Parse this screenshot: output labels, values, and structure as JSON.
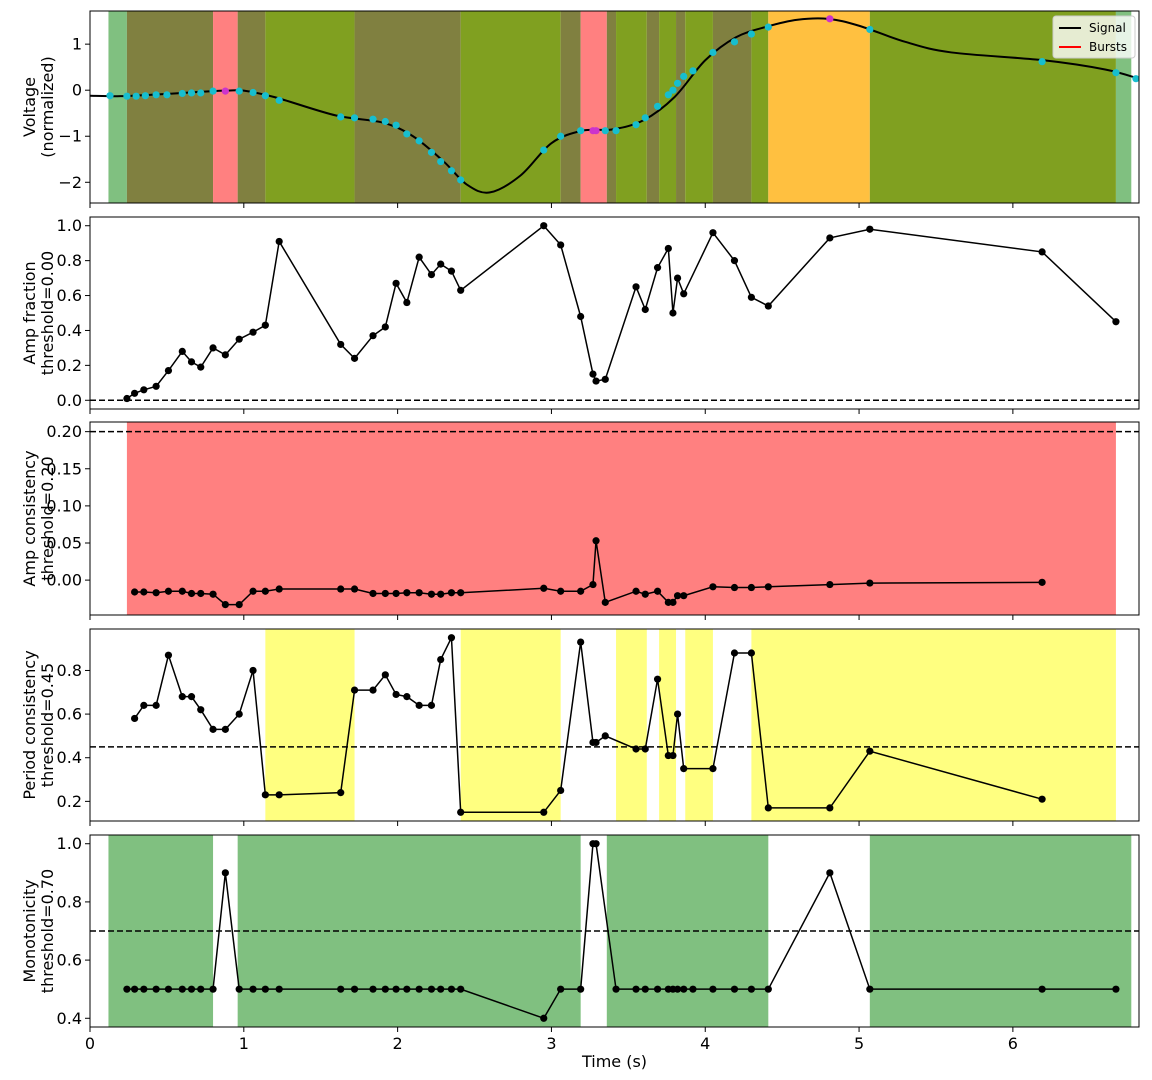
{
  "figure": {
    "xlabel": "Time (s)",
    "xlim": [
      0,
      6.82
    ],
    "xticks": [
      0,
      1,
      2,
      3,
      4,
      5,
      6
    ]
  },
  "chart_data": [
    {
      "type": "line",
      "panel": "signal",
      "ylabel": [
        "Voltage",
        "(normalized)"
      ],
      "ylim": [
        -2.45,
        1.72
      ],
      "yticks": [
        -2,
        -1,
        0,
        1
      ],
      "legend": {
        "placement": "top-right",
        "entries": [
          {
            "label": "Signal",
            "color": "#000000"
          },
          {
            "label": "Bursts",
            "color": "#ff0000"
          }
        ]
      },
      "signal": {
        "x": [
          0.0,
          0.2,
          0.4,
          0.6,
          0.8,
          0.9,
          1.0,
          1.2,
          1.6,
          1.9,
          2.1,
          2.3,
          2.45,
          2.6,
          2.8,
          3.0,
          3.2,
          3.4,
          3.6,
          3.8,
          4.0,
          4.2,
          4.4,
          4.6,
          4.8,
          5.0,
          5.3,
          5.6,
          6.2,
          6.6,
          6.82
        ],
        "y": [
          -0.12,
          -0.13,
          -0.1,
          -0.06,
          -0.02,
          -0.01,
          -0.01,
          -0.15,
          -0.55,
          -0.7,
          -1.0,
          -1.55,
          -2.05,
          -2.22,
          -1.85,
          -1.15,
          -0.88,
          -0.85,
          -0.65,
          -0.15,
          0.65,
          1.15,
          1.38,
          1.53,
          1.55,
          1.4,
          1.05,
          0.82,
          0.65,
          0.45,
          0.25
        ]
      },
      "extrema_cyan": {
        "x": [
          0.13,
          0.24,
          0.3,
          0.36,
          0.43,
          0.5,
          0.6,
          0.66,
          0.72,
          0.8,
          0.97,
          1.06,
          1.14,
          1.23,
          1.63,
          1.72,
          1.84,
          1.92,
          1.99,
          2.06,
          2.14,
          2.22,
          2.28,
          2.35,
          2.41,
          2.95,
          3.06,
          3.19,
          3.35,
          3.42,
          3.55,
          3.61,
          3.69,
          3.76,
          3.79,
          3.82,
          3.86,
          3.92,
          4.05,
          4.19,
          4.3,
          4.41,
          5.07,
          6.19,
          6.67,
          6.8
        ],
        "y": [
          -0.12,
          -0.13,
          -0.13,
          -0.12,
          -0.1,
          -0.1,
          -0.07,
          -0.06,
          -0.06,
          -0.02,
          -0.02,
          -0.05,
          -0.12,
          -0.22,
          -0.58,
          -0.6,
          -0.63,
          -0.68,
          -0.76,
          -0.95,
          -1.1,
          -1.35,
          -1.55,
          -1.75,
          -1.95,
          -1.3,
          -1.0,
          -0.88,
          -0.88,
          -0.88,
          -0.75,
          -0.6,
          -0.35,
          -0.1,
          0.0,
          0.15,
          0.3,
          0.42,
          0.82,
          1.05,
          1.22,
          1.37,
          1.32,
          0.62,
          0.38,
          0.25
        ]
      },
      "extrema_magenta": {
        "x": [
          0.88,
          3.27,
          3.29,
          4.81
        ],
        "y": [
          -0.02,
          -0.88,
          -0.88,
          1.55
        ]
      },
      "regions": [
        {
          "x0": 0.12,
          "x1": 0.24,
          "color": "#80c080"
        },
        {
          "x0": 0.24,
          "x1": 0.8,
          "color": "#808040"
        },
        {
          "x0": 0.8,
          "x1": 0.96,
          "color": "#ff8080"
        },
        {
          "x0": 0.96,
          "x1": 1.14,
          "color": "#808040"
        },
        {
          "x0": 1.14,
          "x1": 1.72,
          "color": "#80a020"
        },
        {
          "x0": 1.72,
          "x1": 2.41,
          "color": "#808040"
        },
        {
          "x0": 2.41,
          "x1": 3.06,
          "color": "#80a020"
        },
        {
          "x0": 3.06,
          "x1": 3.19,
          "color": "#808040"
        },
        {
          "x0": 3.19,
          "x1": 3.36,
          "color": "#ff8080"
        },
        {
          "x0": 3.36,
          "x1": 3.42,
          "color": "#808040"
        },
        {
          "x0": 3.42,
          "x1": 3.62,
          "color": "#80a020"
        },
        {
          "x0": 3.62,
          "x1": 3.7,
          "color": "#808040"
        },
        {
          "x0": 3.7,
          "x1": 3.81,
          "color": "#80a020"
        },
        {
          "x0": 3.81,
          "x1": 3.87,
          "color": "#808040"
        },
        {
          "x0": 3.87,
          "x1": 4.05,
          "color": "#80a020"
        },
        {
          "x0": 4.05,
          "x1": 4.3,
          "color": "#808040"
        },
        {
          "x0": 4.3,
          "x1": 4.41,
          "color": "#80a020"
        },
        {
          "x0": 4.41,
          "x1": 5.07,
          "color": "#ffc040"
        },
        {
          "x0": 5.07,
          "x1": 6.67,
          "color": "#80a020"
        },
        {
          "x0": 6.67,
          "x1": 6.77,
          "color": "#80c080"
        }
      ]
    },
    {
      "type": "line",
      "panel": "amp-fraction",
      "ylabel": [
        "Amp fraction",
        "threshold=0.00"
      ],
      "ylim": [
        -0.05,
        1.05
      ],
      "yticks": [
        0.0,
        0.2,
        0.4,
        0.6,
        0.8,
        1.0
      ],
      "yticklabels": [
        "0.0",
        "0.2",
        "0.4",
        "0.6",
        "0.8",
        "1.0"
      ],
      "threshold": 0.0,
      "regions": [],
      "series": {
        "x": [
          0.24,
          0.29,
          0.35,
          0.43,
          0.51,
          0.6,
          0.66,
          0.72,
          0.8,
          0.88,
          0.97,
          1.06,
          1.14,
          1.23,
          1.63,
          1.72,
          1.84,
          1.92,
          1.99,
          2.06,
          2.14,
          2.22,
          2.28,
          2.35,
          2.41,
          2.95,
          3.06,
          3.19,
          3.27,
          3.29,
          3.35,
          3.55,
          3.61,
          3.69,
          3.76,
          3.79,
          3.82,
          3.86,
          4.05,
          4.19,
          4.3,
          4.41,
          4.81,
          5.07,
          6.19,
          6.67
        ],
        "y": [
          0.01,
          0.04,
          0.06,
          0.08,
          0.17,
          0.28,
          0.22,
          0.19,
          0.3,
          0.26,
          0.35,
          0.39,
          0.43,
          0.91,
          0.32,
          0.24,
          0.37,
          0.42,
          0.67,
          0.56,
          0.82,
          0.72,
          0.78,
          0.74,
          0.63,
          1.0,
          0.89,
          0.48,
          0.15,
          0.11,
          0.12,
          0.65,
          0.52,
          0.76,
          0.87,
          0.5,
          0.7,
          0.61,
          0.96,
          0.8,
          0.59,
          0.54,
          0.93,
          0.98,
          0.85,
          0.45
        ]
      }
    },
    {
      "type": "line",
      "panel": "amp-consistency",
      "ylabel": [
        "Amp consistency",
        "threshold=0.20"
      ],
      "ylim": [
        -0.047,
        0.213
      ],
      "yticks": [
        0.0,
        0.05,
        0.1,
        0.15,
        0.2
      ],
      "yticklabels": [
        "0.00",
        "0.05",
        "0.10",
        "0.15",
        "0.20"
      ],
      "threshold": 0.2,
      "regions": [
        {
          "x0": 0.24,
          "x1": 6.67,
          "color": "#ff8080"
        }
      ],
      "series": {
        "x": [
          0.29,
          0.35,
          0.43,
          0.51,
          0.6,
          0.66,
          0.72,
          0.8,
          0.88,
          0.97,
          1.06,
          1.14,
          1.23,
          1.63,
          1.72,
          1.84,
          1.92,
          1.99,
          2.06,
          2.14,
          2.22,
          2.28,
          2.35,
          2.41,
          2.95,
          3.06,
          3.19,
          3.27,
          3.29,
          3.35,
          3.55,
          3.61,
          3.69,
          3.76,
          3.79,
          3.82,
          3.86,
          4.05,
          4.19,
          4.3,
          4.41,
          4.81,
          5.07,
          6.19
        ],
        "y": [
          -0.016,
          -0.016,
          -0.017,
          -0.015,
          -0.015,
          -0.018,
          -0.018,
          -0.019,
          -0.033,
          -0.033,
          -0.015,
          -0.015,
          -0.012,
          -0.012,
          -0.012,
          -0.018,
          -0.018,
          -0.018,
          -0.017,
          -0.017,
          -0.019,
          -0.019,
          -0.017,
          -0.017,
          -0.011,
          -0.015,
          -0.015,
          -0.006,
          0.053,
          -0.03,
          -0.015,
          -0.019,
          -0.015,
          -0.03,
          -0.03,
          -0.021,
          -0.021,
          -0.009,
          -0.01,
          -0.01,
          -0.009,
          -0.006,
          -0.004,
          -0.003
        ]
      }
    },
    {
      "type": "line",
      "panel": "period-consistency",
      "ylabel": [
        "Period consistency",
        "threshold=0.45"
      ],
      "ylim": [
        0.11,
        0.99
      ],
      "yticks": [
        0.2,
        0.4,
        0.6,
        0.8
      ],
      "yticklabels": [
        "0.2",
        "0.4",
        "0.6",
        "0.8"
      ],
      "threshold": 0.45,
      "regions": [
        {
          "x0": 1.14,
          "x1": 1.72,
          "color": "#ffff80"
        },
        {
          "x0": 2.41,
          "x1": 3.06,
          "color": "#ffff80"
        },
        {
          "x0": 3.42,
          "x1": 3.62,
          "color": "#ffff80"
        },
        {
          "x0": 3.7,
          "x1": 3.81,
          "color": "#ffff80"
        },
        {
          "x0": 3.87,
          "x1": 4.05,
          "color": "#ffff80"
        },
        {
          "x0": 4.3,
          "x1": 6.67,
          "color": "#ffff80"
        }
      ],
      "series": {
        "x": [
          0.29,
          0.35,
          0.43,
          0.51,
          0.6,
          0.66,
          0.72,
          0.8,
          0.88,
          0.97,
          1.06,
          1.14,
          1.23,
          1.63,
          1.72,
          1.84,
          1.92,
          1.99,
          2.06,
          2.14,
          2.22,
          2.28,
          2.35,
          2.41,
          2.95,
          3.06,
          3.19,
          3.27,
          3.29,
          3.35,
          3.55,
          3.61,
          3.69,
          3.76,
          3.79,
          3.82,
          3.86,
          4.05,
          4.19,
          4.3,
          4.41,
          4.81,
          5.07,
          6.19
        ],
        "y": [
          0.58,
          0.64,
          0.64,
          0.87,
          0.68,
          0.68,
          0.62,
          0.53,
          0.53,
          0.6,
          0.8,
          0.23,
          0.23,
          0.24,
          0.71,
          0.71,
          0.78,
          0.69,
          0.68,
          0.64,
          0.64,
          0.85,
          0.95,
          0.15,
          0.15,
          0.25,
          0.93,
          0.47,
          0.47,
          0.5,
          0.44,
          0.44,
          0.76,
          0.41,
          0.41,
          0.6,
          0.35,
          0.35,
          0.88,
          0.88,
          0.17,
          0.17,
          0.43,
          0.21
        ]
      }
    },
    {
      "type": "line",
      "panel": "monotonicity",
      "ylabel": [
        "Monotonicity",
        "threshold=0.70"
      ],
      "ylim": [
        0.37,
        1.03
      ],
      "yticks": [
        0.4,
        0.6,
        0.8,
        1.0
      ],
      "yticklabels": [
        "0.4",
        "0.6",
        "0.8",
        "1.0"
      ],
      "threshold": 0.7,
      "regions": [
        {
          "x0": 0.12,
          "x1": 0.8,
          "color": "#80c080"
        },
        {
          "x0": 0.96,
          "x1": 3.19,
          "color": "#80c080"
        },
        {
          "x0": 3.36,
          "x1": 4.41,
          "color": "#80c080"
        },
        {
          "x0": 5.07,
          "x1": 6.77,
          "color": "#80c080"
        }
      ],
      "series": {
        "x": [
          0.24,
          0.29,
          0.35,
          0.43,
          0.51,
          0.6,
          0.66,
          0.72,
          0.8,
          0.88,
          0.97,
          1.06,
          1.14,
          1.23,
          1.63,
          1.72,
          1.84,
          1.92,
          1.99,
          2.06,
          2.14,
          2.22,
          2.28,
          2.35,
          2.41,
          2.95,
          3.06,
          3.19,
          3.27,
          3.29,
          3.42,
          3.55,
          3.61,
          3.69,
          3.76,
          3.79,
          3.82,
          3.86,
          3.92,
          4.05,
          4.19,
          4.3,
          4.41,
          4.81,
          5.07,
          6.19,
          6.67
        ],
        "y": [
          0.5,
          0.5,
          0.5,
          0.5,
          0.5,
          0.5,
          0.5,
          0.5,
          0.5,
          0.9,
          0.5,
          0.5,
          0.5,
          0.5,
          0.5,
          0.5,
          0.5,
          0.5,
          0.5,
          0.5,
          0.5,
          0.5,
          0.5,
          0.5,
          0.5,
          0.4,
          0.5,
          0.5,
          1.0,
          1.0,
          0.5,
          0.5,
          0.5,
          0.5,
          0.5,
          0.5,
          0.5,
          0.5,
          0.5,
          0.5,
          0.5,
          0.5,
          0.5,
          0.9,
          0.5,
          0.5,
          0.5
        ]
      }
    }
  ]
}
